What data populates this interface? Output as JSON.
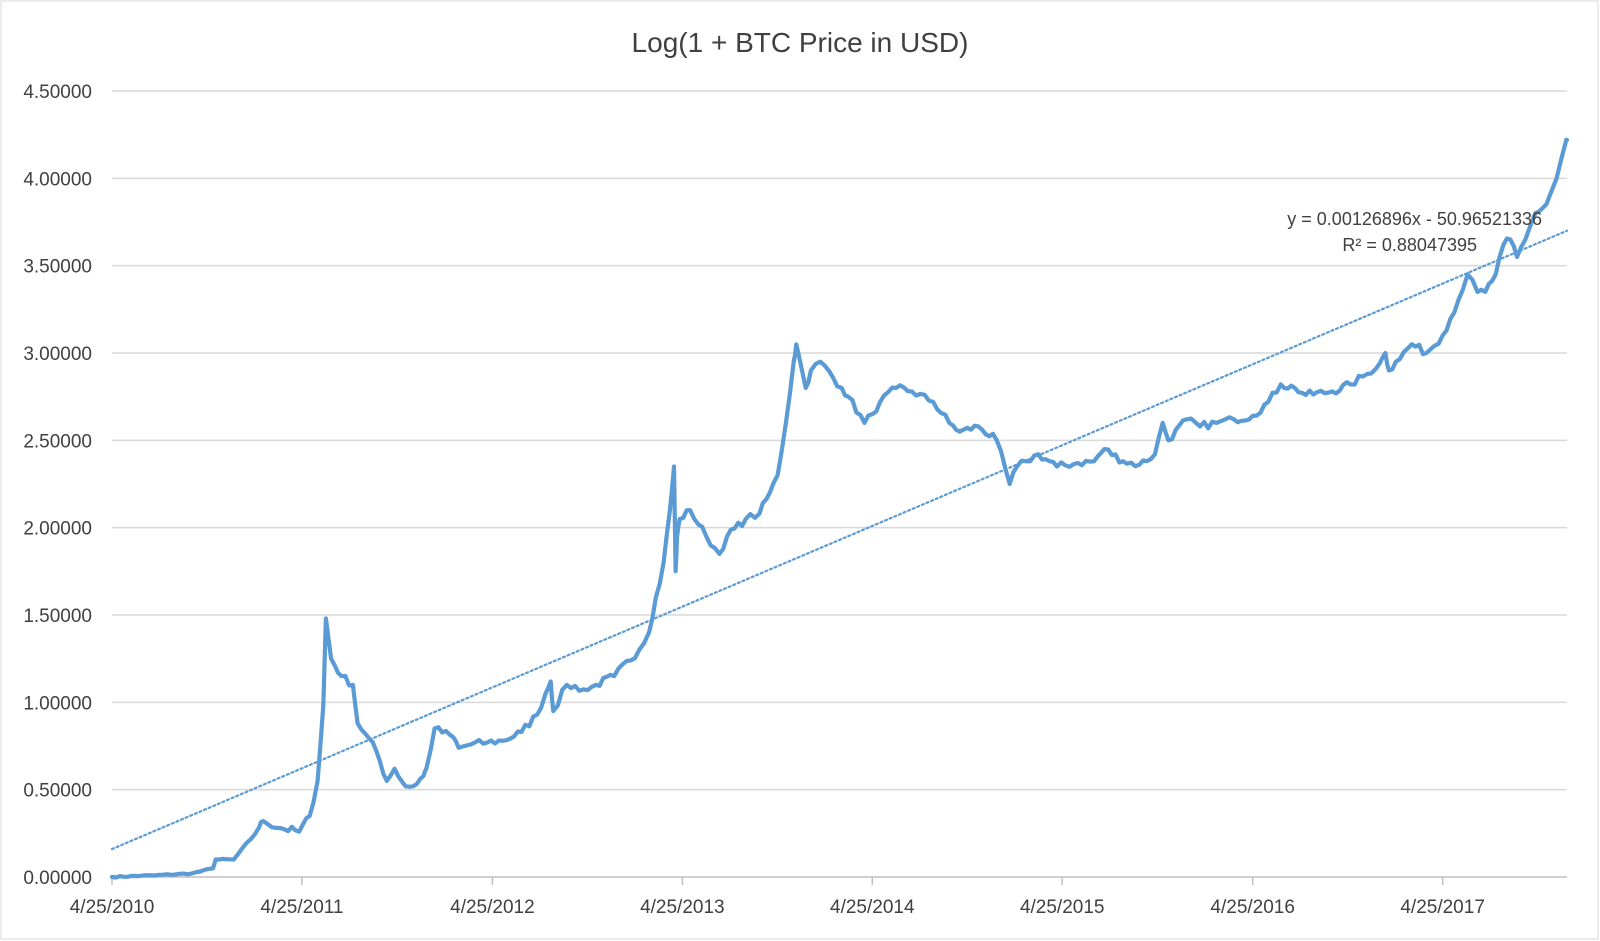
{
  "chart_data": {
    "type": "line",
    "title": "Log(1 + BTC Price in USD)",
    "xlabel": "",
    "ylabel": "",
    "x_tick_labels": [
      "4/25/2010",
      "4/25/2011",
      "4/25/2012",
      "4/25/2013",
      "4/25/2014",
      "4/25/2015",
      "4/25/2016",
      "4/25/2017"
    ],
    "y_tick_labels": [
      "0.00000",
      "0.50000",
      "1.00000",
      "1.50000",
      "2.00000",
      "2.50000",
      "3.00000",
      "3.50000",
      "4.00000",
      "4.50000"
    ],
    "ylim": [
      0,
      4.5
    ],
    "xlim": [
      "2010-04-25",
      "2017-12-20"
    ],
    "grid": "horizontal",
    "legend": "none",
    "colors": {
      "series": "#5B9BD5",
      "trendline": "#5B9BD5",
      "grid": "#D9D9D9",
      "text": "#404040"
    },
    "series": [
      {
        "x": [
          "2010-04-25",
          "2010-07-17",
          "2010-09-25",
          "2010-11-05",
          "2010-11-10",
          "2010-12-15",
          "2011-02-01",
          "2011-02-10",
          "2011-03-15",
          "2011-04-20",
          "2011-05-10",
          "2011-05-25",
          "2011-06-05",
          "2011-06-10",
          "2011-06-20",
          "2011-07-10",
          "2011-08-01",
          "2011-08-10",
          "2011-08-25",
          "2011-09-15",
          "2011-10-05",
          "2011-10-20",
          "2011-11-10",
          "2011-11-25",
          "2011-12-15",
          "2011-12-20",
          "2012-01-05",
          "2012-02-10",
          "2012-02-20",
          "2012-03-15",
          "2012-04-15",
          "2012-05-15",
          "2012-06-20",
          "2012-07-20",
          "2012-08-05",
          "2012-08-15",
          "2012-08-20",
          "2012-09-15",
          "2012-10-25",
          "2012-11-10",
          "2012-12-15",
          "2013-02-01",
          "2013-02-20",
          "2013-03-05",
          "2013-03-20",
          "2013-04-01",
          "2013-04-09",
          "2013-04-12",
          "2013-04-15",
          "2013-04-20",
          "2013-05-10",
          "2013-06-10",
          "2013-07-05",
          "2013-07-20",
          "2013-08-25",
          "2013-09-20",
          "2013-10-10",
          "2013-10-25",
          "2013-11-10",
          "2013-11-25",
          "2013-11-30",
          "2013-12-18",
          "2013-12-28",
          "2014-01-15",
          "2014-02-25",
          "2014-03-10",
          "2014-04-10",
          "2014-04-25",
          "2014-05-10",
          "2014-06-10",
          "2014-07-10",
          "2014-08-20",
          "2014-09-20",
          "2014-10-10",
          "2014-11-15",
          "2014-12-20",
          "2015-01-14",
          "2015-01-28",
          "2015-02-15",
          "2015-03-10",
          "2015-04-15",
          "2015-05-25",
          "2015-06-25",
          "2015-07-15",
          "2015-08-20",
          "2015-09-20",
          "2015-10-20",
          "2015-11-04",
          "2015-11-15",
          "2015-12-20",
          "2016-01-15",
          "2016-02-15",
          "2016-03-20",
          "2016-04-25",
          "2016-05-25",
          "2016-06-18",
          "2016-07-15",
          "2016-08-05",
          "2016-09-25",
          "2016-10-30",
          "2016-12-01",
          "2016-12-25",
          "2017-01-05",
          "2017-01-12",
          "2017-01-25",
          "2017-02-25",
          "2017-03-25",
          "2017-04-25",
          "2017-05-25",
          "2017-06-12",
          "2017-07-01",
          "2017-07-16",
          "2017-08-05",
          "2017-08-20",
          "2017-09-02",
          "2017-09-15",
          "2017-10-01",
          "2017-10-20",
          "2017-11-10",
          "2017-11-30",
          "2017-12-17",
          "2017-12-20"
        ],
        "y": [
          0.0,
          0.01,
          0.02,
          0.05,
          0.1,
          0.1,
          0.28,
          0.32,
          0.28,
          0.26,
          0.35,
          0.55,
          0.98,
          1.48,
          1.25,
          1.15,
          1.1,
          0.88,
          0.82,
          0.72,
          0.55,
          0.62,
          0.52,
          0.52,
          0.58,
          0.62,
          0.85,
          0.8,
          0.74,
          0.76,
          0.77,
          0.78,
          0.83,
          0.93,
          1.05,
          1.12,
          0.95,
          1.1,
          1.07,
          1.1,
          1.15,
          1.3,
          1.4,
          1.6,
          1.8,
          2.1,
          2.35,
          1.75,
          1.95,
          2.05,
          2.1,
          1.95,
          1.85,
          1.95,
          2.05,
          2.08,
          2.2,
          2.3,
          2.6,
          2.95,
          3.05,
          2.8,
          2.9,
          2.95,
          2.8,
          2.75,
          2.6,
          2.65,
          2.72,
          2.8,
          2.78,
          2.72,
          2.6,
          2.55,
          2.58,
          2.5,
          2.25,
          2.35,
          2.38,
          2.42,
          2.35,
          2.37,
          2.38,
          2.45,
          2.38,
          2.36,
          2.42,
          2.6,
          2.5,
          2.62,
          2.58,
          2.6,
          2.62,
          2.64,
          2.72,
          2.82,
          2.8,
          2.76,
          2.78,
          2.82,
          2.88,
          2.94,
          3.0,
          2.9,
          2.95,
          3.05,
          3.0,
          3.1,
          3.3,
          3.45,
          3.35,
          3.35,
          3.45,
          3.62,
          3.65,
          3.55,
          3.65,
          3.8,
          3.85,
          4.0,
          4.2,
          4.22
        ]
      }
    ],
    "trendline": {
      "type": "linear",
      "style": "dotted",
      "x_start": "2010-04-25",
      "y_start": 0.16,
      "x_end": "2017-12-20",
      "y_end": 3.7,
      "equation": "y = 0.00126896x - 50.96521336",
      "r_squared": "R² = 0.88047395"
    }
  }
}
